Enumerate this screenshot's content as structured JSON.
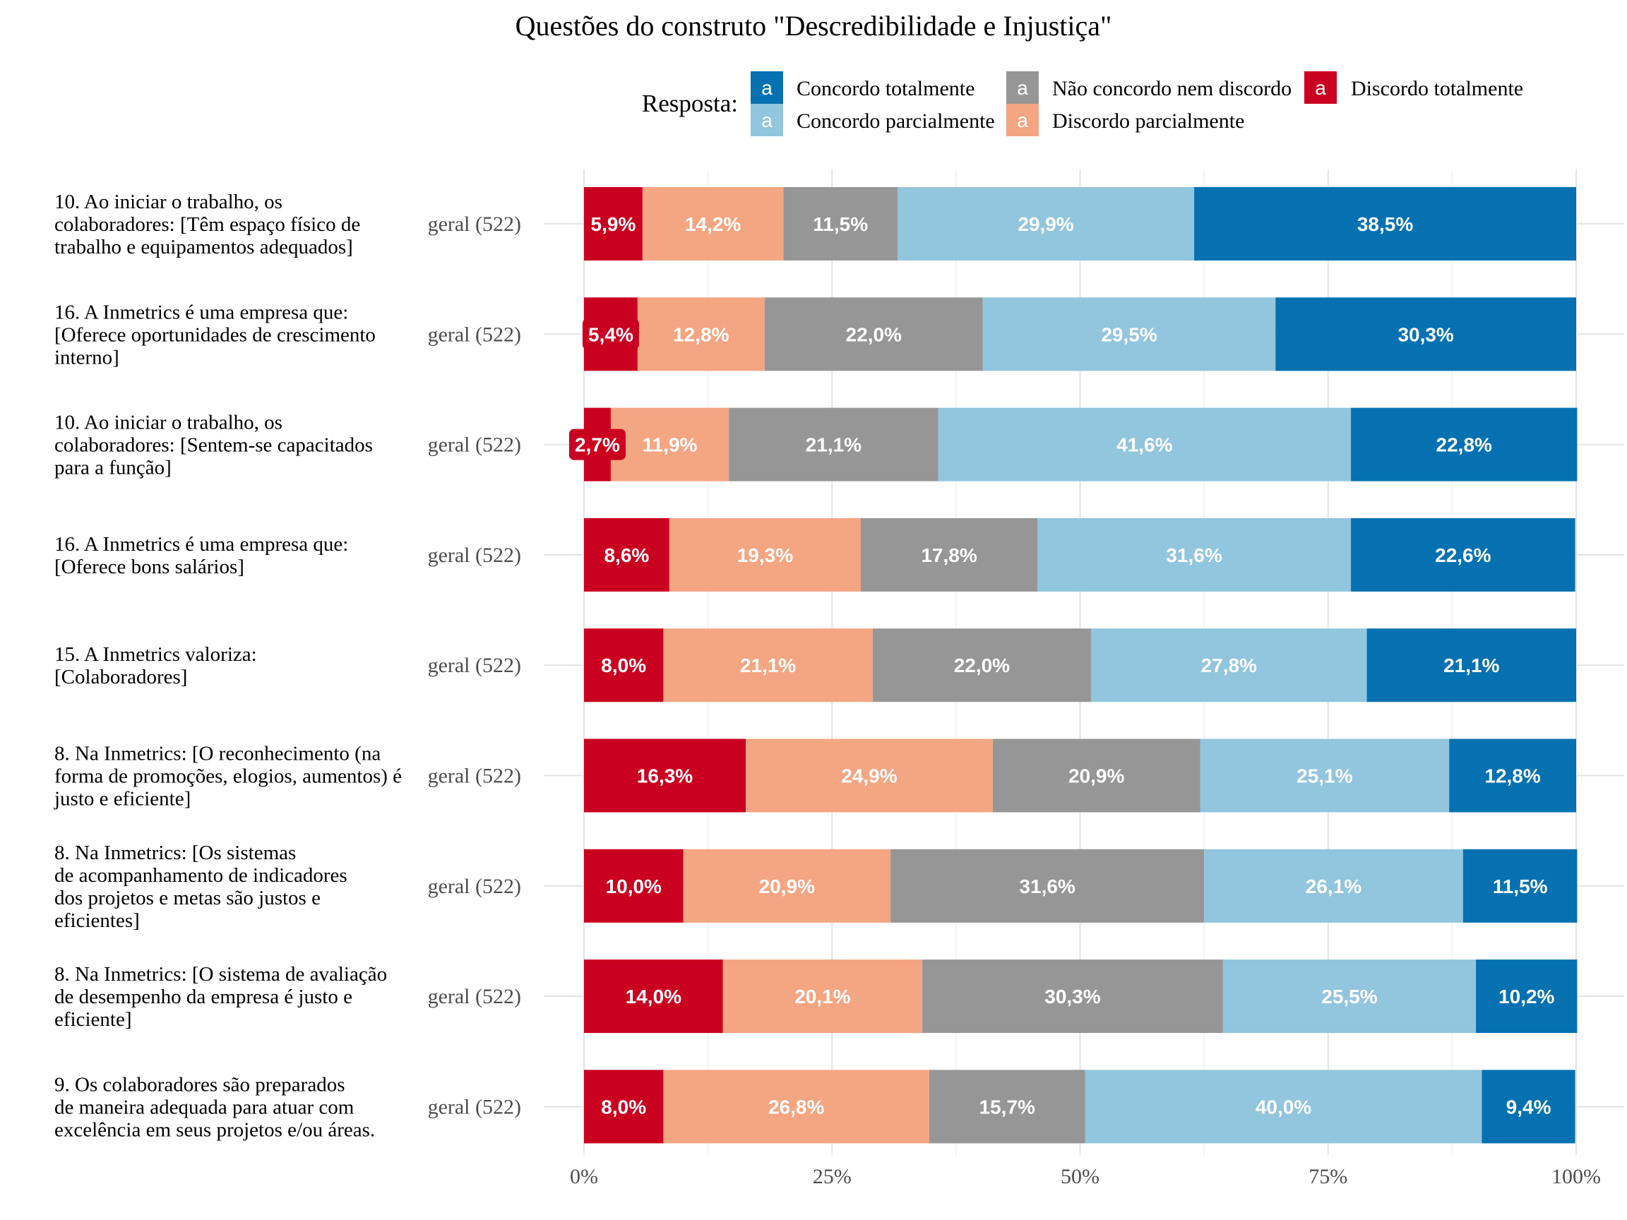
{
  "chart_data": {
    "type": "bar",
    "orientation": "horizontal",
    "stacked": true,
    "title": "Questões do construto \"Descredibilidade e Injustiça\"",
    "legend": {
      "title": "Resposta:",
      "position": "top",
      "key_glyph": "a",
      "items": [
        {
          "name": "Concordo totalmente",
          "color": "#0571b0"
        },
        {
          "name": "Concordo parcialmente",
          "color": "#92c5de"
        },
        {
          "name": "Não concordo nem discordo",
          "color": "#969696"
        },
        {
          "name": "Discordo parcialmente",
          "color": "#f4a582"
        },
        {
          "name": "Discordo totalmente",
          "color": "#ca0020"
        }
      ]
    },
    "stack_order": [
      "Discordo totalmente",
      "Discordo parcialmente",
      "Não concordo nem discordo",
      "Concordo parcialmente",
      "Concordo totalmente"
    ],
    "x_ticks": [
      "0%",
      "25%",
      "50%",
      "75%",
      "100%"
    ],
    "xlim": [
      0,
      100
    ],
    "grid": true,
    "rows": [
      {
        "question": [
          "10. Ao iniciar o trabalho, os",
          "colaboradores: [Têm espaço físico de",
          "trabalho e equipamentos adequados]"
        ],
        "group": "geral (522)",
        "values": [
          5.9,
          14.2,
          11.5,
          29.9,
          38.5
        ],
        "labels": [
          "5,9%",
          "14,2%",
          "11,5%",
          "29,9%",
          "38,5%"
        ]
      },
      {
        "question": [
          "16. A Inmetrics é uma empresa que:",
          "[Oferece oportunidades de crescimento",
          "interno]"
        ],
        "group": "geral (522)",
        "values": [
          5.4,
          12.8,
          22.0,
          29.5,
          30.3
        ],
        "labels": [
          "5,4%",
          "12,8%",
          "22,0%",
          "29,5%",
          "30,3%"
        ]
      },
      {
        "question": [
          "10. Ao iniciar o trabalho, os",
          "colaboradores: [Sentem-se capacitados",
          "para a função]"
        ],
        "group": "geral (522)",
        "values": [
          2.7,
          11.9,
          21.1,
          41.6,
          22.8
        ],
        "labels": [
          "2,7%",
          "11,9%",
          "21,1%",
          "41,6%",
          "22,8%"
        ]
      },
      {
        "question": [
          "16. A Inmetrics é uma empresa que:",
          "[Oferece bons salários]"
        ],
        "group": "geral (522)",
        "values": [
          8.6,
          19.3,
          17.8,
          31.6,
          22.6
        ],
        "labels": [
          "8,6%",
          "19,3%",
          "17,8%",
          "31,6%",
          "22,6%"
        ]
      },
      {
        "question": [
          "15. A Inmetrics valoriza:",
          "[Colaboradores]"
        ],
        "group": "geral (522)",
        "values": [
          8.0,
          21.1,
          22.0,
          27.8,
          21.1
        ],
        "labels": [
          "8,0%",
          "21,1%",
          "22,0%",
          "27,8%",
          "21,1%"
        ]
      },
      {
        "question": [
          "8. Na Inmetrics: [O reconhecimento (na",
          "forma de promoções, elogios, aumentos) é",
          "justo e eficiente]"
        ],
        "group": "geral (522)",
        "values": [
          16.3,
          24.9,
          20.9,
          25.1,
          12.8
        ],
        "labels": [
          "16,3%",
          "24,9%",
          "20,9%",
          "25,1%",
          "12,8%"
        ]
      },
      {
        "question": [
          "8. Na Inmetrics: [Os sistemas",
          "de acompanhamento de indicadores",
          "dos projetos e metas são justos e",
          "eficientes]"
        ],
        "group": "geral (522)",
        "values": [
          10.0,
          20.9,
          31.6,
          26.1,
          11.5
        ],
        "labels": [
          "10,0%",
          "20,9%",
          "31,6%",
          "26,1%",
          "11,5%"
        ]
      },
      {
        "question": [
          "8. Na Inmetrics: [O sistema de avaliação",
          "de desempenho da empresa é justo e",
          "eficiente]"
        ],
        "group": "geral (522)",
        "values": [
          14.0,
          20.1,
          30.3,
          25.5,
          10.2
        ],
        "labels": [
          "14,0%",
          "20,1%",
          "30,3%",
          "25,5%",
          "10,2%"
        ]
      },
      {
        "question": [
          "9. Os colaboradores são preparados",
          "de maneira adequada para atuar com",
          "excelência em seus projetos e/ou áreas."
        ],
        "group": "geral (522)",
        "values": [
          8.0,
          26.8,
          15.7,
          40.0,
          9.4
        ],
        "labels": [
          "8,0%",
          "26,8%",
          "15,7%",
          "40,0%",
          "9,4%"
        ]
      }
    ]
  }
}
